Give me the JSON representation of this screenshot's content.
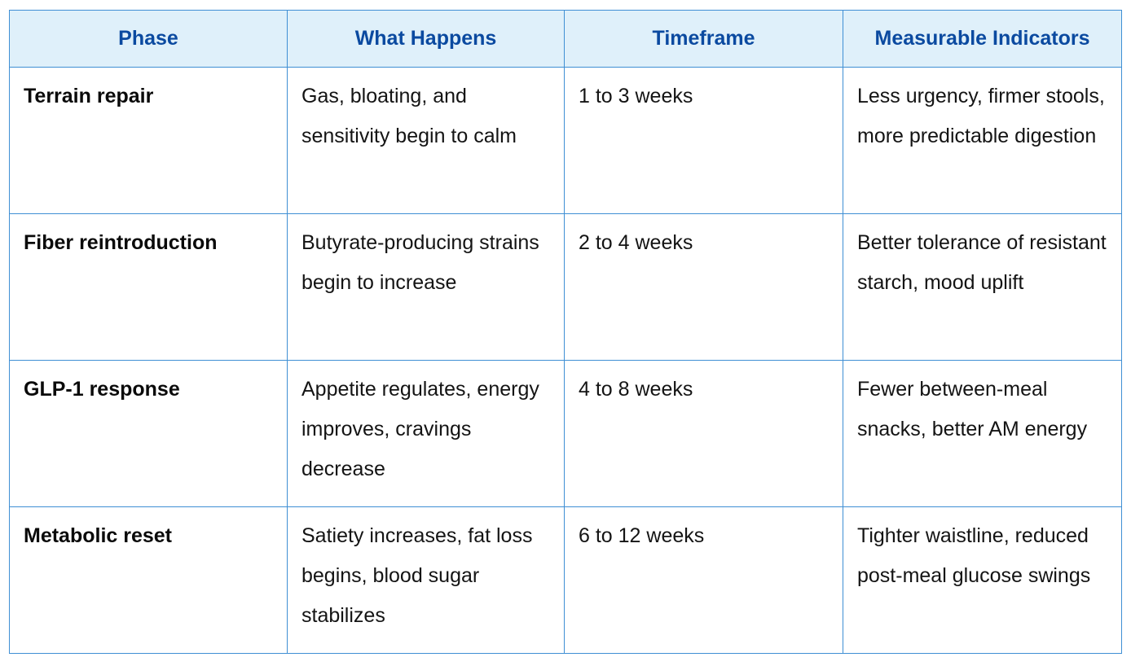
{
  "table": {
    "headers": [
      "Phase",
      "What Happens",
      "Timeframe",
      "Measurable Indicators"
    ],
    "rows": [
      {
        "phase": "Terrain repair",
        "what_happens": "Gas, bloating, and sensitivity begin to calm",
        "timeframe": "1 to 3 weeks",
        "indicators": "Less urgency, firmer stools, more predictable digestion"
      },
      {
        "phase": "Fiber reintroduction",
        "what_happens": "Butyrate-producing strains begin to increase",
        "timeframe": "2 to 4 weeks",
        "indicators": "Better tolerance of resistant starch, mood uplift"
      },
      {
        "phase": "GLP-1 response",
        "what_happens": "Appetite regulates, energy improves, cravings decrease",
        "timeframe": "4 to 8 weeks",
        "indicators": "Fewer between-meal snacks, better AM energy"
      },
      {
        "phase": "Metabolic reset",
        "what_happens": "Satiety increases, fat loss begins, blood sugar stabilizes",
        "timeframe": "6 to 12 weeks",
        "indicators": "Tighter waistline, reduced post-meal glucose swings"
      }
    ]
  },
  "colors": {
    "border": "#3f8fd4",
    "header_bg": "#dff0fa",
    "header_text": "#0b4aa0"
  }
}
